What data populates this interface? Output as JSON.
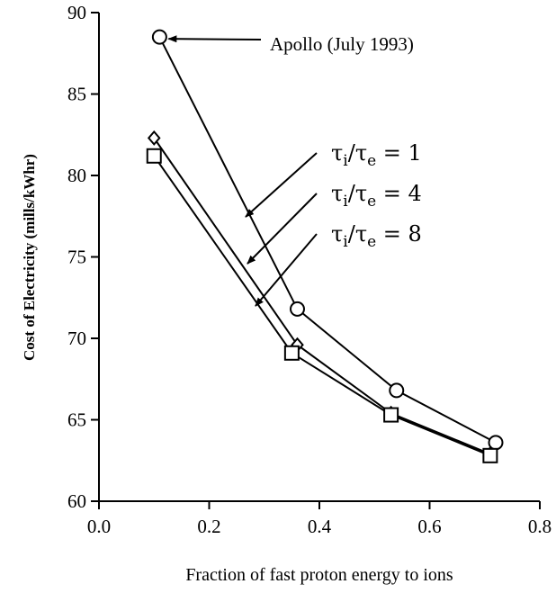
{
  "chart_data": {
    "type": "line",
    "title": "",
    "xlabel": "Fraction of fast proton energy to ions",
    "ylabel": "Cost of Electricity (mills/kWhr)",
    "xlim": [
      0.0,
      0.8
    ],
    "ylim": [
      60,
      90
    ],
    "xticks": [
      "0.0",
      "0.2",
      "0.4",
      "0.6",
      "0.8"
    ],
    "yticks": [
      "60",
      "65",
      "70",
      "75",
      "80",
      "85",
      "90"
    ],
    "grid": false,
    "series": [
      {
        "key": "tau1",
        "marker": "circle",
        "label_tau": "τ",
        "label_sub1": "i",
        "label_slash": "/",
        "label_tau2": "τ",
        "label_sub2": "e",
        "label_eq": "= 1",
        "x": [
          0.11,
          0.36,
          0.54,
          0.72
        ],
        "y": [
          88.5,
          71.8,
          66.8,
          63.6
        ]
      },
      {
        "key": "tau4",
        "marker": "diamond",
        "label_tau": "τ",
        "label_sub1": "i",
        "label_slash": "/",
        "label_tau2": "τ",
        "label_sub2": "e",
        "label_eq": "= 4",
        "x": [
          0.1,
          0.36,
          0.53,
          0.71
        ],
        "y": [
          82.3,
          69.6,
          65.4,
          62.9
        ]
      },
      {
        "key": "tau8",
        "marker": "square",
        "label_tau": "τ",
        "label_sub1": "i",
        "label_slash": "/",
        "label_tau2": "τ",
        "label_sub2": "e",
        "label_eq": "= 8",
        "x": [
          0.1,
          0.35,
          0.53,
          0.71
        ],
        "y": [
          81.2,
          69.1,
          65.3,
          62.8
        ]
      }
    ],
    "annotations": [
      {
        "text": "Apollo (July 1993)",
        "x": 0.11,
        "y": 88.5
      }
    ]
  }
}
